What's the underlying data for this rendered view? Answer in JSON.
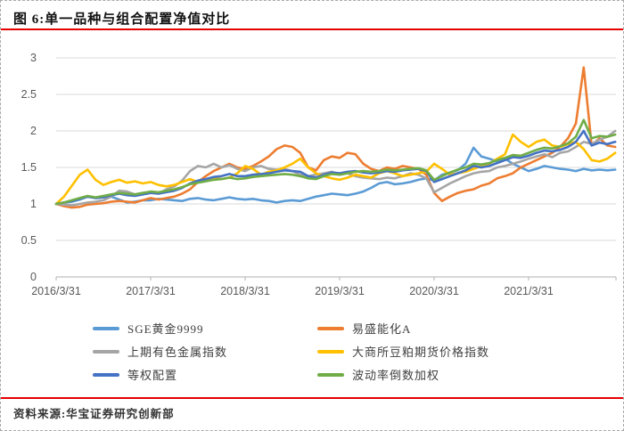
{
  "figure": {
    "title": "图 6:单一品种与组合配置净值对比",
    "source": "资料来源:华宝证券研究创新部",
    "accent_color": "#e60000",
    "border_color": "#a9a9a9"
  },
  "chart_data": {
    "type": "line",
    "title": "单一品种与组合配置净值对比",
    "xlabel": "",
    "ylabel": "",
    "ylim": [
      0,
      3
    ],
    "y_ticks": [
      0,
      0.5,
      1,
      1.5,
      2,
      2.5,
      3
    ],
    "y_tick_labels": [
      "0",
      "0.5",
      "1",
      "1.5",
      "2",
      "2.5",
      "3"
    ],
    "x_tick_labels": [
      "2016/3/31",
      "2017/3/31",
      "2018/3/31",
      "2019/3/31",
      "2020/3/31",
      "2021/3/31"
    ],
    "x_start": "2016/3/31",
    "x_step": "1 month",
    "grid": "horizontal",
    "legend_position": "bottom",
    "axis_color": "#bfbfbf",
    "grid_color": "#d9d9d9",
    "tick_label_color": "#595959",
    "series": [
      {
        "name": "SGE黄金9999",
        "slug": "sge-gold",
        "color": "#5b9bd5",
        "values": [
          1.0,
          1.02,
          1.03,
          1.06,
          1.1,
          1.08,
          1.09,
          1.1,
          1.06,
          1.02,
          1.03,
          1.05,
          1.05,
          1.07,
          1.06,
          1.05,
          1.04,
          1.07,
          1.08,
          1.06,
          1.05,
          1.07,
          1.09,
          1.07,
          1.06,
          1.07,
          1.05,
          1.04,
          1.02,
          1.04,
          1.05,
          1.04,
          1.07,
          1.1,
          1.12,
          1.14,
          1.13,
          1.12,
          1.14,
          1.17,
          1.22,
          1.28,
          1.3,
          1.27,
          1.28,
          1.3,
          1.33,
          1.35,
          1.32,
          1.4,
          1.43,
          1.46,
          1.55,
          1.77,
          1.65,
          1.62,
          1.58,
          1.62,
          1.55,
          1.5,
          1.45,
          1.48,
          1.52,
          1.5,
          1.48,
          1.47,
          1.45,
          1.48,
          1.46,
          1.47,
          1.46,
          1.47
        ]
      },
      {
        "name": "易盛能化A",
        "slug": "yisheng-energy",
        "color": "#ed7d31",
        "values": [
          1.0,
          0.97,
          0.95,
          0.96,
          0.99,
          1.0,
          1.01,
          1.03,
          1.04,
          1.03,
          1.02,
          1.05,
          1.08,
          1.06,
          1.08,
          1.1,
          1.14,
          1.2,
          1.3,
          1.38,
          1.45,
          1.5,
          1.55,
          1.5,
          1.48,
          1.52,
          1.58,
          1.65,
          1.75,
          1.8,
          1.78,
          1.7,
          1.5,
          1.46,
          1.6,
          1.65,
          1.63,
          1.7,
          1.68,
          1.55,
          1.48,
          1.45,
          1.5,
          1.48,
          1.52,
          1.5,
          1.48,
          1.4,
          1.15,
          1.04,
          1.1,
          1.15,
          1.18,
          1.2,
          1.25,
          1.28,
          1.35,
          1.38,
          1.42,
          1.5,
          1.55,
          1.6,
          1.65,
          1.7,
          1.78,
          1.9,
          2.1,
          2.87,
          1.8,
          1.9,
          1.8,
          1.78
        ]
      },
      {
        "name": "上期有色金属指数",
        "slug": "shfe-metals",
        "color": "#a5a5a5",
        "values": [
          1.0,
          0.99,
          0.98,
          1.0,
          1.02,
          1.03,
          1.05,
          1.1,
          1.18,
          1.17,
          1.13,
          1.15,
          1.16,
          1.14,
          1.2,
          1.24,
          1.32,
          1.45,
          1.52,
          1.5,
          1.55,
          1.5,
          1.53,
          1.48,
          1.45,
          1.5,
          1.52,
          1.48,
          1.47,
          1.48,
          1.45,
          1.4,
          1.38,
          1.4,
          1.42,
          1.44,
          1.4,
          1.42,
          1.38,
          1.36,
          1.35,
          1.34,
          1.36,
          1.35,
          1.38,
          1.42,
          1.4,
          1.35,
          1.16,
          1.22,
          1.28,
          1.33,
          1.38,
          1.42,
          1.44,
          1.45,
          1.5,
          1.52,
          1.55,
          1.58,
          1.62,
          1.65,
          1.68,
          1.64,
          1.7,
          1.72,
          1.78,
          1.85,
          1.82,
          1.88,
          1.92,
          2.0
        ]
      },
      {
        "name": "大商所豆粕期货价格指数",
        "slug": "dce-soymeal",
        "color": "#ffc000",
        "values": [
          1.0,
          1.1,
          1.25,
          1.4,
          1.47,
          1.33,
          1.26,
          1.3,
          1.33,
          1.29,
          1.31,
          1.28,
          1.3,
          1.26,
          1.24,
          1.26,
          1.3,
          1.34,
          1.3,
          1.33,
          1.36,
          1.34,
          1.36,
          1.42,
          1.52,
          1.48,
          1.4,
          1.44,
          1.46,
          1.5,
          1.55,
          1.62,
          1.5,
          1.42,
          1.38,
          1.35,
          1.33,
          1.36,
          1.4,
          1.38,
          1.36,
          1.42,
          1.45,
          1.42,
          1.38,
          1.4,
          1.42,
          1.44,
          1.55,
          1.48,
          1.4,
          1.42,
          1.44,
          1.48,
          1.52,
          1.55,
          1.62,
          1.68,
          1.95,
          1.85,
          1.78,
          1.85,
          1.88,
          1.8,
          1.78,
          1.82,
          1.85,
          1.75,
          1.6,
          1.58,
          1.62,
          1.7
        ]
      },
      {
        "name": "等权配置",
        "slug": "equal-weight",
        "color": "#4472c4",
        "values": [
          1.0,
          1.02,
          1.04,
          1.07,
          1.1,
          1.08,
          1.09,
          1.12,
          1.14,
          1.12,
          1.11,
          1.13,
          1.15,
          1.14,
          1.16,
          1.18,
          1.22,
          1.28,
          1.32,
          1.34,
          1.37,
          1.38,
          1.41,
          1.38,
          1.38,
          1.4,
          1.41,
          1.42,
          1.44,
          1.46,
          1.45,
          1.44,
          1.38,
          1.36,
          1.4,
          1.43,
          1.42,
          1.44,
          1.45,
          1.43,
          1.42,
          1.43,
          1.45,
          1.44,
          1.46,
          1.47,
          1.48,
          1.45,
          1.3,
          1.34,
          1.38,
          1.42,
          1.46,
          1.52,
          1.5,
          1.52,
          1.56,
          1.6,
          1.64,
          1.63,
          1.66,
          1.7,
          1.73,
          1.72,
          1.74,
          1.78,
          1.85,
          2.0,
          1.8,
          1.84,
          1.82,
          1.85
        ]
      },
      {
        "name": "波动率倒数加权",
        "slug": "inverse-vol",
        "color": "#70ad47",
        "values": [
          1.0,
          1.02,
          1.05,
          1.08,
          1.11,
          1.09,
          1.11,
          1.13,
          1.15,
          1.14,
          1.13,
          1.15,
          1.17,
          1.16,
          1.18,
          1.2,
          1.23,
          1.27,
          1.29,
          1.31,
          1.33,
          1.34,
          1.36,
          1.34,
          1.35,
          1.37,
          1.38,
          1.39,
          1.4,
          1.41,
          1.4,
          1.38,
          1.35,
          1.34,
          1.38,
          1.41,
          1.4,
          1.42,
          1.44,
          1.45,
          1.44,
          1.45,
          1.47,
          1.46,
          1.47,
          1.48,
          1.49,
          1.46,
          1.33,
          1.38,
          1.43,
          1.47,
          1.5,
          1.55,
          1.54,
          1.56,
          1.6,
          1.63,
          1.67,
          1.66,
          1.7,
          1.74,
          1.77,
          1.76,
          1.79,
          1.83,
          1.92,
          2.15,
          1.9,
          1.93,
          1.92,
          1.95
        ]
      }
    ]
  }
}
